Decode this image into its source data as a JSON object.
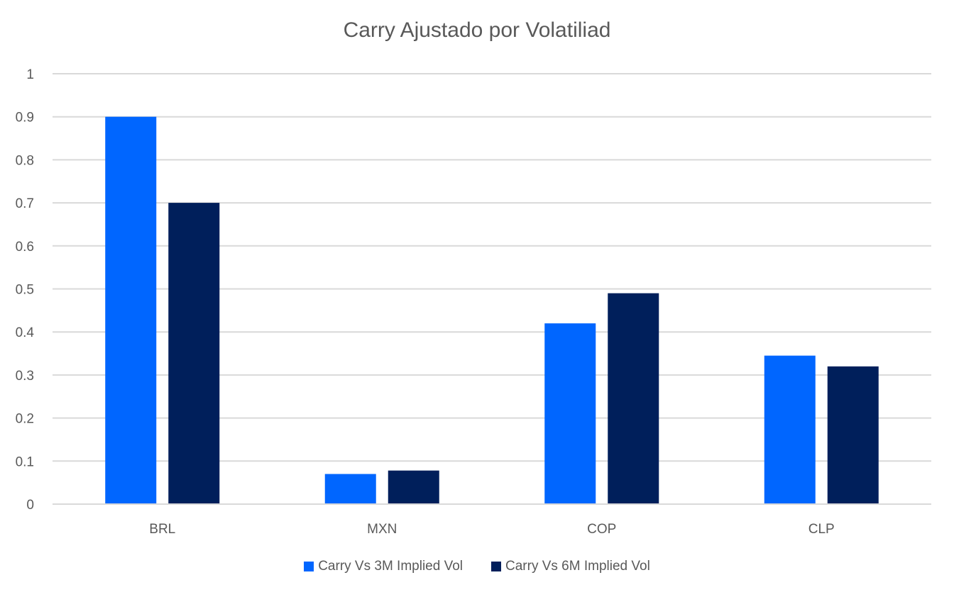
{
  "chart_data": {
    "type": "bar",
    "title": "Carry Ajustado por Volatiliad",
    "xlabel": "",
    "ylabel": "",
    "categories": [
      "BRL",
      "MXN",
      "COP",
      "CLP"
    ],
    "series": [
      {
        "name": "Carry Vs 3M Implied Vol",
        "color": "#0066FF",
        "values": [
          0.9,
          0.07,
          0.42,
          0.345
        ]
      },
      {
        "name": "Carry Vs 6M Implied Vol",
        "color": "#001F5B",
        "values": [
          0.7,
          0.078,
          0.49,
          0.32
        ]
      }
    ],
    "ylim": [
      0,
      1
    ],
    "yticks": [
      "0",
      "0.1",
      "0.2",
      "0.3",
      "0.4",
      "0.5",
      "0.6",
      "0.7",
      "0.8",
      "0.9",
      "1"
    ],
    "grid": true,
    "legend_position": "bottom"
  }
}
